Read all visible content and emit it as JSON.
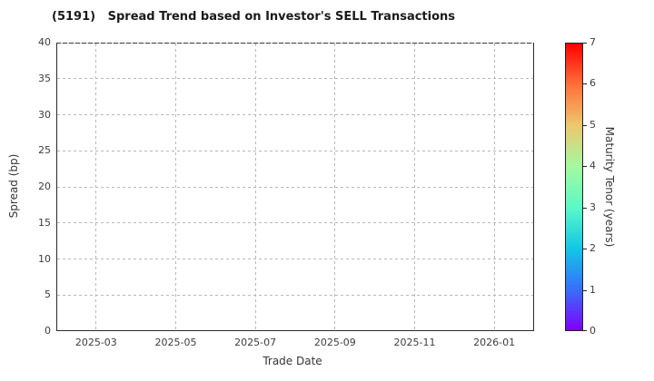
{
  "chart_data": {
    "type": "scatter",
    "title": "(5191)   Spread Trend based on Investor's SELL Transactions",
    "xlabel": "Trade Date",
    "ylabel": "Spread (bp)",
    "x_tick_labels": [
      "2025-03",
      "2025-05",
      "2025-07",
      "2025-09",
      "2025-11",
      "2026-01"
    ],
    "y_ticks": [
      0,
      5,
      10,
      15,
      20,
      25,
      30,
      35,
      40
    ],
    "ylim": [
      0,
      40
    ],
    "grid": true,
    "grid_style": "dashed",
    "legend": "none",
    "points": [],
    "colorbar": {
      "label": "Maturity Tenor (years)",
      "ticks": [
        0,
        1,
        2,
        3,
        4,
        5,
        6,
        7
      ],
      "lim": [
        0,
        7
      ],
      "colormap": "rainbow",
      "gradient_stops_bottom_to_top": [
        "#8000ff",
        "#376ff9",
        "#12c7e6",
        "#5bf9c7",
        "#a4f99f",
        "#edc76f",
        "#ff6f39",
        "#ff0000"
      ]
    },
    "colors": {
      "background": "#ffffff",
      "axis": "#2b2b2b",
      "grid": "#b8b8b8",
      "tick_label": "#3d3d3d",
      "title": "#1a1a1a"
    }
  }
}
